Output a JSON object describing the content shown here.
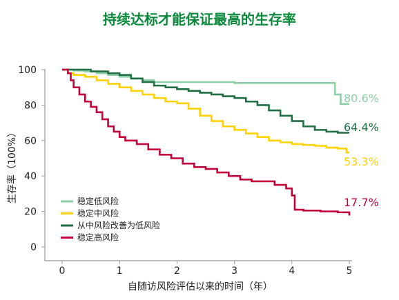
{
  "chart_data": {
    "type": "line",
    "title": "持续达标才能保证最高的生存率",
    "xlabel": "自随访风险评估以来的时间（年）",
    "ylabel": "生存率（100%）",
    "xlim": [
      0,
      5
    ],
    "ylim": [
      0,
      100
    ],
    "xticks": [
      0,
      1,
      2,
      3,
      4,
      5
    ],
    "yticks": [
      0,
      20,
      40,
      60,
      80,
      100
    ],
    "grid": false,
    "legend_position": "bottom-left",
    "series": [
      {
        "name": "稳定低风险",
        "color": "#8ccfa7",
        "end_label": "80.6%",
        "points": [
          [
            0,
            100
          ],
          [
            0.2,
            99.5
          ],
          [
            0.4,
            99
          ],
          [
            0.6,
            98
          ],
          [
            0.8,
            97
          ],
          [
            1.0,
            96
          ],
          [
            1.2,
            95
          ],
          [
            1.4,
            94
          ],
          [
            1.6,
            93
          ],
          [
            2.0,
            93
          ],
          [
            2.5,
            93
          ],
          [
            3.0,
            92.5
          ],
          [
            3.5,
            92.5
          ],
          [
            4.0,
            92.5
          ],
          [
            4.5,
            92.5
          ],
          [
            4.7,
            92.5
          ],
          [
            4.75,
            86
          ],
          [
            4.85,
            80.6
          ],
          [
            5.0,
            80.6
          ]
        ]
      },
      {
        "name": "稳定中风险",
        "color": "#ffd200",
        "end_label": "53.3%",
        "points": [
          [
            0,
            100
          ],
          [
            0.1,
            98
          ],
          [
            0.2,
            97
          ],
          [
            0.4,
            96
          ],
          [
            0.6,
            94
          ],
          [
            0.8,
            92
          ],
          [
            1.0,
            90
          ],
          [
            1.2,
            88
          ],
          [
            1.4,
            86
          ],
          [
            1.6,
            84
          ],
          [
            1.8,
            82
          ],
          [
            2.0,
            81
          ],
          [
            2.2,
            78
          ],
          [
            2.4,
            74
          ],
          [
            2.6,
            71
          ],
          [
            2.8,
            68
          ],
          [
            3.0,
            66
          ],
          [
            3.2,
            64
          ],
          [
            3.4,
            62
          ],
          [
            3.6,
            60
          ],
          [
            3.8,
            59
          ],
          [
            4.0,
            58
          ],
          [
            4.2,
            57.5
          ],
          [
            4.4,
            57
          ],
          [
            4.6,
            56
          ],
          [
            4.8,
            55.5
          ],
          [
            4.95,
            53.3
          ],
          [
            5.0,
            53.3
          ]
        ]
      },
      {
        "name": "从中风险改善为低风险",
        "color": "#1e6f43",
        "end_label": "64.4%",
        "points": [
          [
            0,
            100
          ],
          [
            0.3,
            100
          ],
          [
            0.5,
            99
          ],
          [
            0.8,
            98
          ],
          [
            1.0,
            97
          ],
          [
            1.2,
            95
          ],
          [
            1.4,
            93
          ],
          [
            1.6,
            91
          ],
          [
            1.8,
            90
          ],
          [
            2.0,
            89
          ],
          [
            2.2,
            88
          ],
          [
            2.4,
            87
          ],
          [
            2.6,
            86
          ],
          [
            2.8,
            85
          ],
          [
            3.0,
            84
          ],
          [
            3.2,
            82
          ],
          [
            3.4,
            80
          ],
          [
            3.6,
            77
          ],
          [
            3.8,
            74
          ],
          [
            4.0,
            71
          ],
          [
            4.2,
            68
          ],
          [
            4.4,
            66
          ],
          [
            4.6,
            65
          ],
          [
            4.8,
            64.4
          ],
          [
            5.0,
            64.4
          ]
        ]
      },
      {
        "name": "稳定高风险",
        "color": "#c4003a",
        "end_label": "17.7%",
        "points": [
          [
            0,
            100
          ],
          [
            0.1,
            98
          ],
          [
            0.15,
            94
          ],
          [
            0.2,
            90
          ],
          [
            0.3,
            86
          ],
          [
            0.4,
            82
          ],
          [
            0.5,
            79
          ],
          [
            0.6,
            76
          ],
          [
            0.7,
            72
          ],
          [
            0.8,
            68
          ],
          [
            0.9,
            65
          ],
          [
            1.0,
            62
          ],
          [
            1.1,
            60
          ],
          [
            1.3,
            58
          ],
          [
            1.5,
            55
          ],
          [
            1.7,
            52
          ],
          [
            1.9,
            50
          ],
          [
            2.1,
            47
          ],
          [
            2.3,
            45
          ],
          [
            2.5,
            44
          ],
          [
            2.7,
            42
          ],
          [
            2.9,
            40
          ],
          [
            3.1,
            38
          ],
          [
            3.3,
            37
          ],
          [
            3.5,
            37
          ],
          [
            3.7,
            35
          ],
          [
            3.9,
            33
          ],
          [
            4.0,
            29
          ],
          [
            4.05,
            21
          ],
          [
            4.2,
            20.5
          ],
          [
            4.5,
            20
          ],
          [
            4.8,
            19.5
          ],
          [
            5.0,
            17.7
          ]
        ]
      }
    ]
  }
}
